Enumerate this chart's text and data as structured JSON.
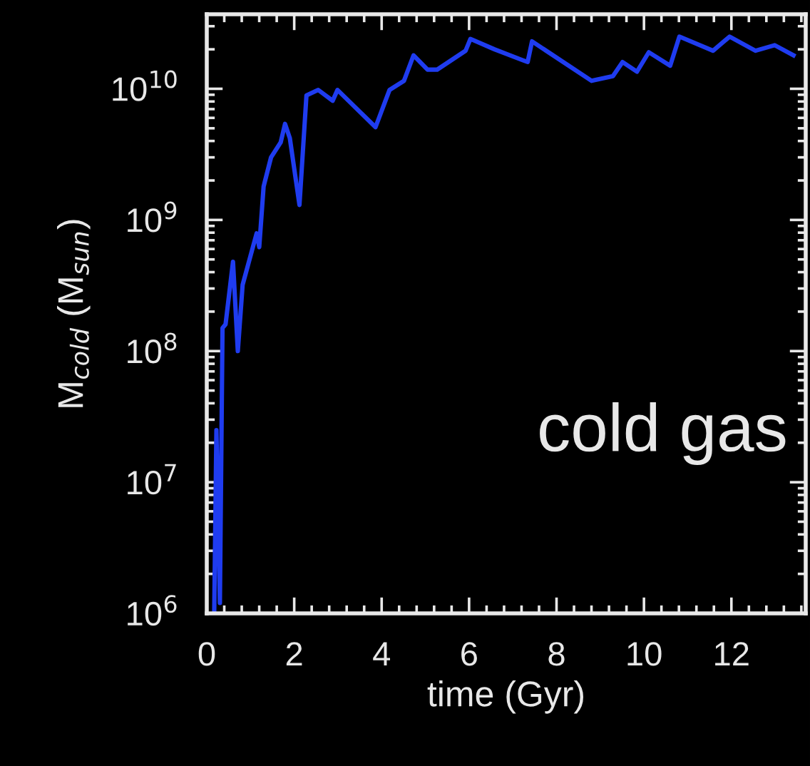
{
  "chart_data": {
    "type": "line",
    "xlabel": "time (Gyr)",
    "ylabel": "M$_{cold}$ (M$_{sun}$)",
    "log": "y",
    "xlim": [
      0,
      13.7
    ],
    "xticks": [
      0,
      2,
      4,
      6,
      8,
      10,
      12
    ],
    "ylim": [
      1000000.0,
      37000000000.0
    ],
    "yticks": [
      {
        "value": 1000000.0,
        "label": "10$^{6}$"
      },
      {
        "value": 10000000.0,
        "label": "10$^{7}$"
      },
      {
        "value": 100000000.0,
        "label": "10$^{8}$"
      },
      {
        "value": 1000000000.0,
        "label": "10$^{9}$"
      },
      {
        "value": 10000000000.0,
        "label": "10$^{10}$"
      }
    ],
    "grid": false,
    "legend": false,
    "marker": "none",
    "line_style": "solid",
    "annotations": [
      "cold gas"
    ],
    "series": [
      {
        "color": "#1f3cf0",
        "x": [
          0.17,
          0.22,
          0.3,
          0.36,
          0.43,
          0.6,
          0.71,
          0.82,
          1.14,
          1.2,
          1.3,
          1.47,
          1.69,
          1.79,
          1.9,
          2.12,
          2.28,
          2.55,
          2.88,
          2.99,
          3.86,
          4.18,
          4.51,
          4.73,
          5.05,
          5.27,
          5.92,
          6.03,
          6.58,
          7.23,
          7.34,
          7.44,
          8.8,
          9.29,
          9.51,
          9.84,
          10.11,
          10.6,
          10.81,
          11.58,
          11.96,
          12.55,
          12.99,
          13.42
        ],
        "values": [
          1000000.0,
          25000000.0,
          1200000.0,
          150000000.0,
          160000000.0,
          480000000.0,
          100000000.0,
          320000000.0,
          790000000.0,
          620000000.0,
          1800000000.0,
          3000000000.0,
          3900000000.0,
          5400000000.0,
          4200000000.0,
          1300000000.0,
          8900000000.0,
          9800000000.0,
          8100000000.0,
          9800000000.0,
          5100000000.0,
          9800000000.0,
          11500000000.0,
          18000000000.0,
          14000000000.0,
          14000000000.0,
          19500000000.0,
          24000000000.0,
          20000000000.0,
          16500000000.0,
          16000000000.0,
          23000000000.0,
          11500000000.0,
          12500000000.0,
          16000000000.0,
          13500000000.0,
          19000000000.0,
          15000000000.0,
          25000000000.0,
          19500000000.0,
          25000000000.0,
          19500000000.0,
          21500000000.0,
          18000000000.0
        ]
      }
    ]
  }
}
